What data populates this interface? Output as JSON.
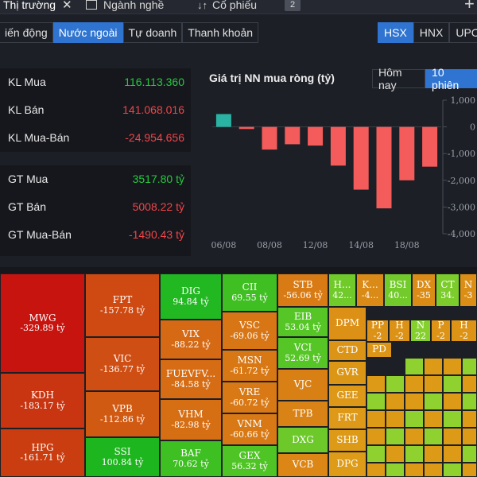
{
  "tabs": [
    {
      "label": "Thị trường",
      "close": "✕"
    },
    {
      "label": "Ngành nghề"
    },
    {
      "label": "Cổ phiếu"
    }
  ],
  "tab_count": "2",
  "subtabs": [
    "iến động",
    "Nước ngoài",
    "Tự doanh",
    "Thanh khoản"
  ],
  "exchanges": [
    "HSX",
    "HNX",
    "UPC"
  ],
  "stats": {
    "kl_mua": {
      "label": "KL Mua",
      "value": "116.113.360"
    },
    "kl_ban": {
      "label": "KL Bán",
      "value": "141.068.016"
    },
    "kl_mua_ban": {
      "label": "KL Mua-Bán",
      "value": "-24.954.656"
    },
    "gt_mua": {
      "label": "GT Mua",
      "value": "3517.80 tỷ"
    },
    "gt_ban": {
      "label": "GT Bán",
      "value": "5008.22 tỷ"
    },
    "gt_mua_ban": {
      "label": "GT Mua-Bán",
      "value": "-1490.43 tỷ"
    }
  },
  "chart_title": "Giá trị NN mua ròng (tỷ)",
  "period_tabs": [
    "Hôm nay",
    "10 phiên"
  ],
  "colors": {
    "positive": "#2ab3a2",
    "negative": "#f45b5b",
    "accent": "#2f74d0",
    "green_text": "#27c93f",
    "red_text": "#f0454a"
  },
  "chart_data": {
    "type": "bar",
    "title": "Giá trị NN mua ròng (tỷ)",
    "categories": [
      "06/08",
      "07/08",
      "08/08",
      "09/08",
      "12/08",
      "13/08",
      "14/08",
      "15/08",
      "18/08",
      "19/08"
    ],
    "xtick_labels": [
      "06/08",
      "08/08",
      "12/08",
      "14/08",
      "18/08"
    ],
    "values": [
      480,
      -80,
      -850,
      -650,
      -700,
      -1450,
      -2350,
      -3050,
      -2000,
      -1490
    ],
    "ylim": [
      -4000,
      1000
    ],
    "yticks": [
      1000,
      0,
      -1000,
      -2000,
      -3000,
      -4000
    ],
    "ytick_labels": [
      "1,000",
      "0",
      "-1,000",
      "-2,000",
      "-3,000",
      "-4,000"
    ],
    "grid": false,
    "legend": "none"
  },
  "heatmap": [
    {
      "n": "MWG",
      "v": "-329.89 tỷ",
      "c": "#c8140f"
    },
    {
      "n": "KDH",
      "v": "-183.17 tỷ",
      "c": "#c83510"
    },
    {
      "n": "HPG",
      "v": "-161.71 tỷ",
      "c": "#c93d10"
    },
    {
      "n": "FPT",
      "v": "-157.78 tỷ",
      "c": "#cf4a12"
    },
    {
      "n": "VIC",
      "v": "-136.77 tỷ",
      "c": "#cf4e13"
    },
    {
      "n": "VPB",
      "v": "-112.86 tỷ",
      "c": "#d15a13"
    },
    {
      "n": "SSI",
      "v": "100.84 tỷ",
      "c": "#1eb61e"
    },
    {
      "n": "DIG",
      "v": "94.84 tỷ",
      "c": "#22b822"
    },
    {
      "n": "VIX",
      "v": "-88.22 tỷ",
      "c": "#d66a14"
    },
    {
      "n": "FUEVFV...",
      "v": "-84.58 tỷ",
      "c": "#d66c14"
    },
    {
      "n": "VHM",
      "v": "-82.98 tỷ",
      "c": "#d66e14"
    },
    {
      "n": "BAF",
      "v": "70.62 tỷ",
      "c": "#3ebf22"
    },
    {
      "n": "CII",
      "v": "69.55 tỷ",
      "c": "#3fbf22"
    },
    {
      "n": "VSC",
      "v": "-69.06 tỷ",
      "c": "#d87515"
    },
    {
      "n": "MSN",
      "v": "-61.72 tỷ",
      "c": "#d87815"
    },
    {
      "n": "VRE",
      "v": "-60.72 tỷ",
      "c": "#d87915"
    },
    {
      "n": "VNM",
      "v": "-60.66 tỷ",
      "c": "#d87915"
    },
    {
      "n": "GEX",
      "v": "56.32 tỷ",
      "c": "#4fc425"
    },
    {
      "n": "STB",
      "v": "-56.06 tỷ",
      "c": "#d97b15"
    },
    {
      "n": "EIB",
      "v": "53.04 tỷ",
      "c": "#55c626"
    },
    {
      "n": "VCI",
      "v": "52.69 tỷ",
      "c": "#56c626"
    },
    {
      "n": "VJC",
      "v": "",
      "c": "#d98015"
    },
    {
      "n": "TPB",
      "v": "",
      "c": "#d98215"
    },
    {
      "n": "DXG",
      "v": "",
      "c": "#6dc92a"
    },
    {
      "n": "VCB",
      "v": "",
      "c": "#db8615"
    },
    {
      "n": "H...",
      "v": "42...",
      "c": "#6fca2a"
    },
    {
      "n": "K...",
      "v": "-4...",
      "c": "#da8a16"
    },
    {
      "n": "BSI",
      "v": "40...",
      "c": "#72cb2b"
    },
    {
      "n": "DX",
      "v": "-35",
      "c": "#db8c16"
    },
    {
      "n": "CT",
      "v": "34.",
      "c": "#7ccd2c"
    },
    {
      "n": "N",
      "v": "-3",
      "c": "#db8e16"
    },
    {
      "n": "DPM",
      "v": "",
      "c": "#dc9016"
    },
    {
      "n": "PP",
      "v": "-2",
      "c": "#dc9216"
    },
    {
      "n": "H",
      "v": "-2",
      "c": "#dc9216"
    },
    {
      "n": "N",
      "v": "22",
      "c": "#86d02e"
    },
    {
      "n": "P",
      "v": "-2",
      "c": "#dc9316"
    },
    {
      "n": "H",
      "v": "-2",
      "c": "#dc9316"
    },
    {
      "n": "CTD",
      "v": "",
      "c": "#dc9416"
    },
    {
      "n": "PD",
      "v": "",
      "c": "#dc9516"
    },
    {
      "n": "GVR",
      "v": "",
      "c": "#dc9616"
    },
    {
      "n": "GEE",
      "v": "",
      "c": "#dd9817"
    },
    {
      "n": "FRT",
      "v": "",
      "c": "#dd9917"
    },
    {
      "n": "SHB",
      "v": "",
      "c": "#dd9a17"
    },
    {
      "n": "DPG",
      "v": "",
      "c": "#dd9b17"
    }
  ],
  "heatmap_small": {
    "green": "#8fd230",
    "orange": "#dc9a17"
  }
}
